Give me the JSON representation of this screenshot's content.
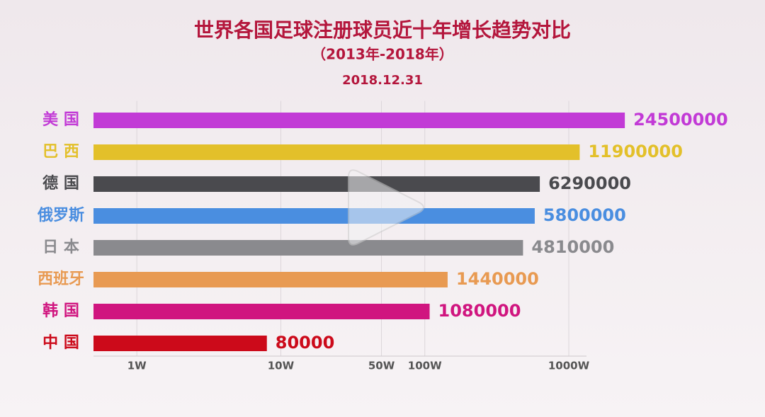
{
  "chart_data": {
    "type": "bar",
    "orientation": "horizontal",
    "title": "世界各国足球注册球员近十年增长趋势对比",
    "subtitle": "（2013年-2018年）",
    "date": "2018.12.31",
    "categories": [
      "美 国",
      "巴 西",
      "德 国",
      "俄罗斯",
      "日 本",
      "西班牙",
      "韩 国",
      "中 国"
    ],
    "values": [
      24500000,
      11900000,
      6290000,
      5800000,
      4810000,
      1440000,
      1080000,
      80000
    ],
    "colors": [
      "#c23ad6",
      "#e3c02a",
      "#4a4a4e",
      "#4a8ee0",
      "#8a8a8e",
      "#e89a52",
      "#d0157f",
      "#cc0a1a"
    ],
    "log_scale": true,
    "xlim": [
      5000,
      30000000
    ],
    "xticks": [
      {
        "value": 10000,
        "label": "1W"
      },
      {
        "value": 100000,
        "label": "10W"
      },
      {
        "value": 500000,
        "label": "50W"
      },
      {
        "value": 1000000,
        "label": "100W"
      },
      {
        "value": 10000000,
        "label": "1000W"
      }
    ],
    "grid": true
  }
}
